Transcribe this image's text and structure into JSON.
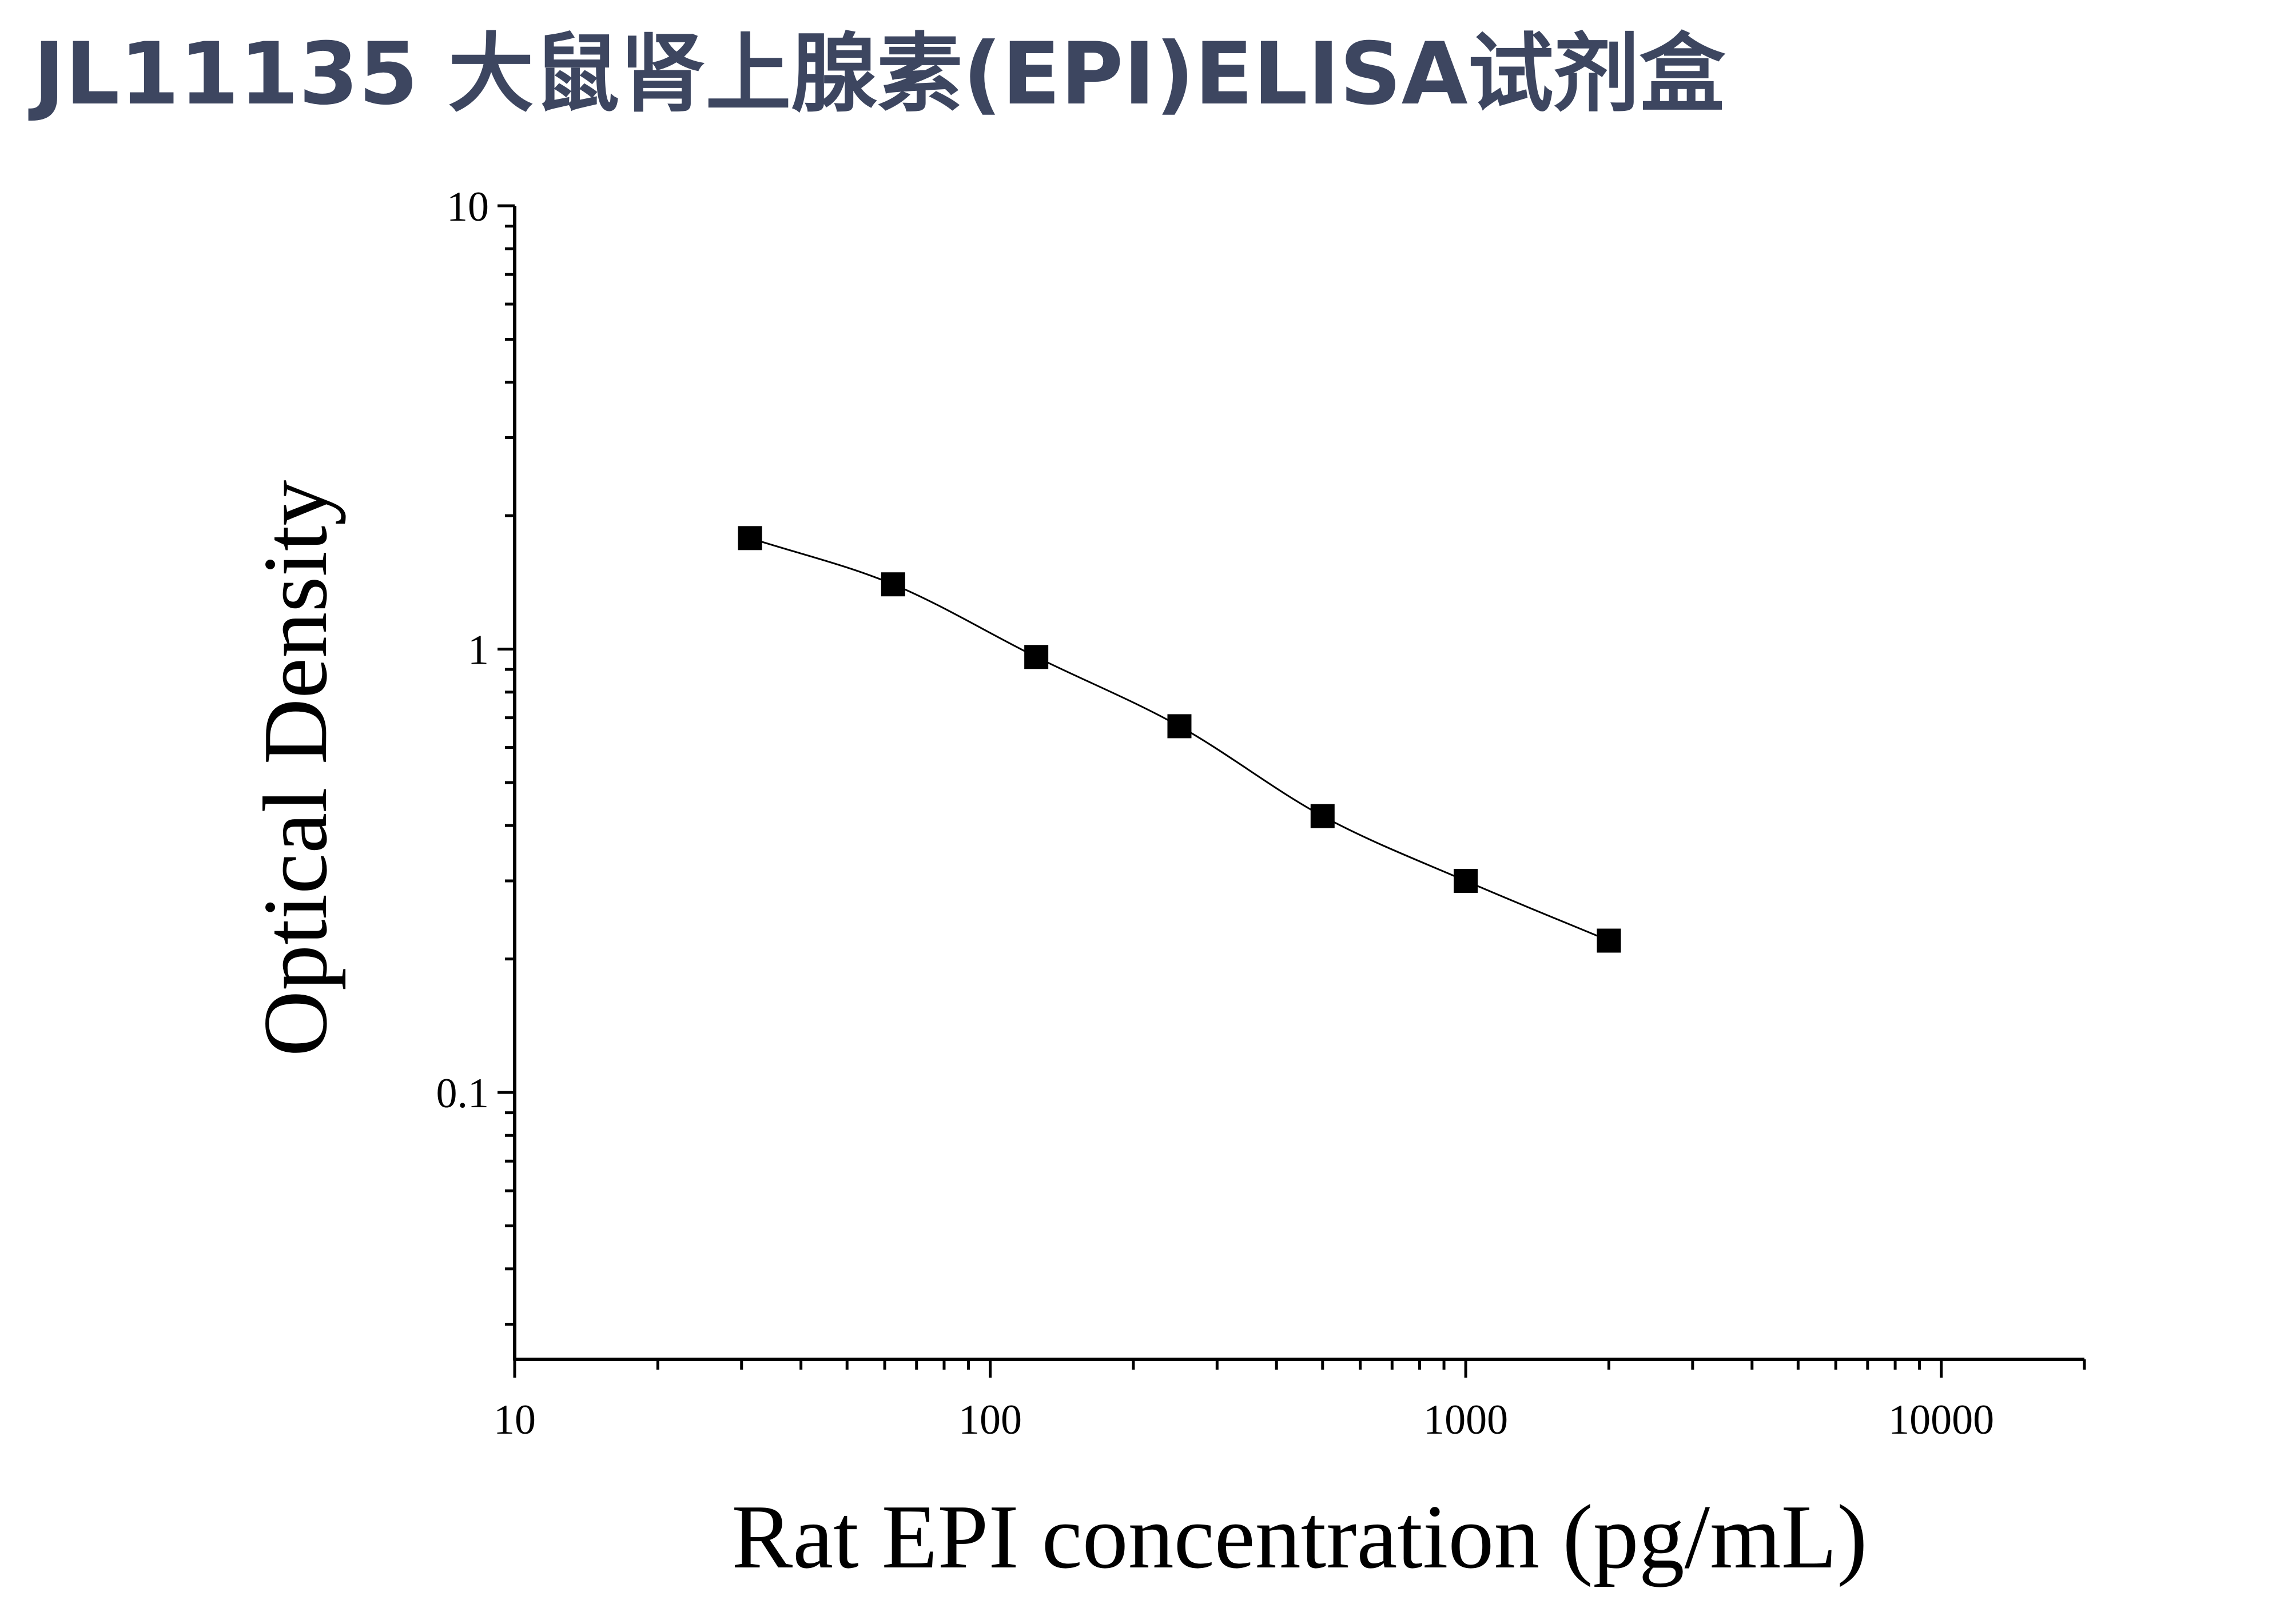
{
  "title": "JL11135 大鼠肾上腺素(EPI)ELISA试剂盒",
  "colors": {
    "title": "#3d4660",
    "ink": "#000000",
    "background": "#ffffff"
  },
  "chart_data": {
    "type": "scatter",
    "xlabel": "Rat EPI concentration (pg/mL)",
    "ylabel": "Optical Density",
    "xscale": "log",
    "yscale": "log",
    "xlim": [
      10,
      20000
    ],
    "ylim": [
      0.025,
      10
    ],
    "xticks": [
      10,
      100,
      1000,
      10000
    ],
    "xtick_labels": [
      "10",
      "100",
      "1000",
      "10000"
    ],
    "yticks": [
      0.1,
      1,
      10
    ],
    "ytick_labels": [
      "0.1",
      "1",
      "10"
    ],
    "grid": false,
    "legend": "none",
    "marker": "square",
    "fit_line": true,
    "series": [
      {
        "x": [
          31.25,
          62.5,
          125,
          250,
          500,
          1000,
          2000
        ],
        "y": [
          1.78,
          1.4,
          0.96,
          0.67,
          0.42,
          0.3,
          0.22
        ]
      }
    ]
  }
}
